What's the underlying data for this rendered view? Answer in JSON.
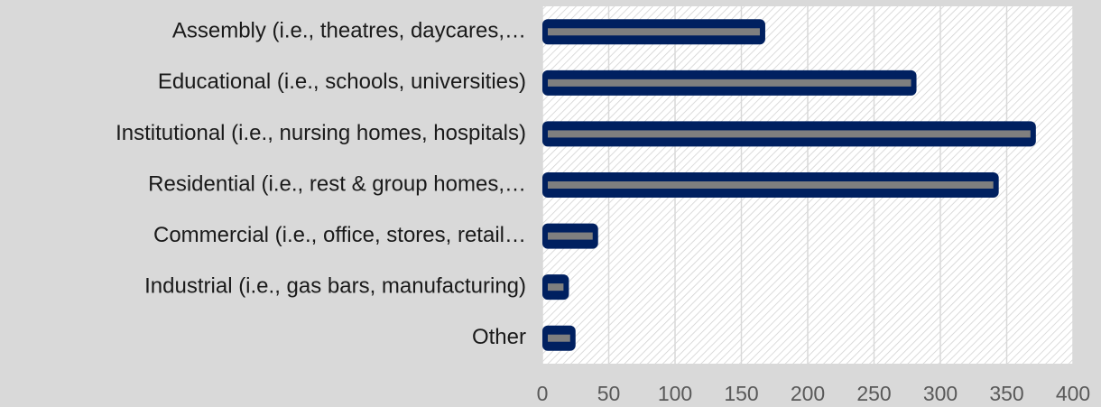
{
  "chart_data": {
    "type": "bar",
    "orientation": "horizontal",
    "categories": [
      "Assembly (i.e., theatres, daycares,…",
      "Educational (i.e., schools, universities)",
      "Institutional (i.e., nursing homes, hospitals)",
      "Residential (i.e., rest & group homes,…",
      "Commercial (i.e., office, stores, retail…",
      "Industrial (i.e., gas bars, manufacturing)",
      "Other"
    ],
    "values": [
      168,
      282,
      372,
      344,
      42,
      20,
      25
    ],
    "color": "#002060",
    "xlim": [
      0,
      400
    ],
    "xticks": [
      0,
      50,
      100,
      150,
      200,
      250,
      300,
      350,
      400
    ],
    "grid": true
  }
}
